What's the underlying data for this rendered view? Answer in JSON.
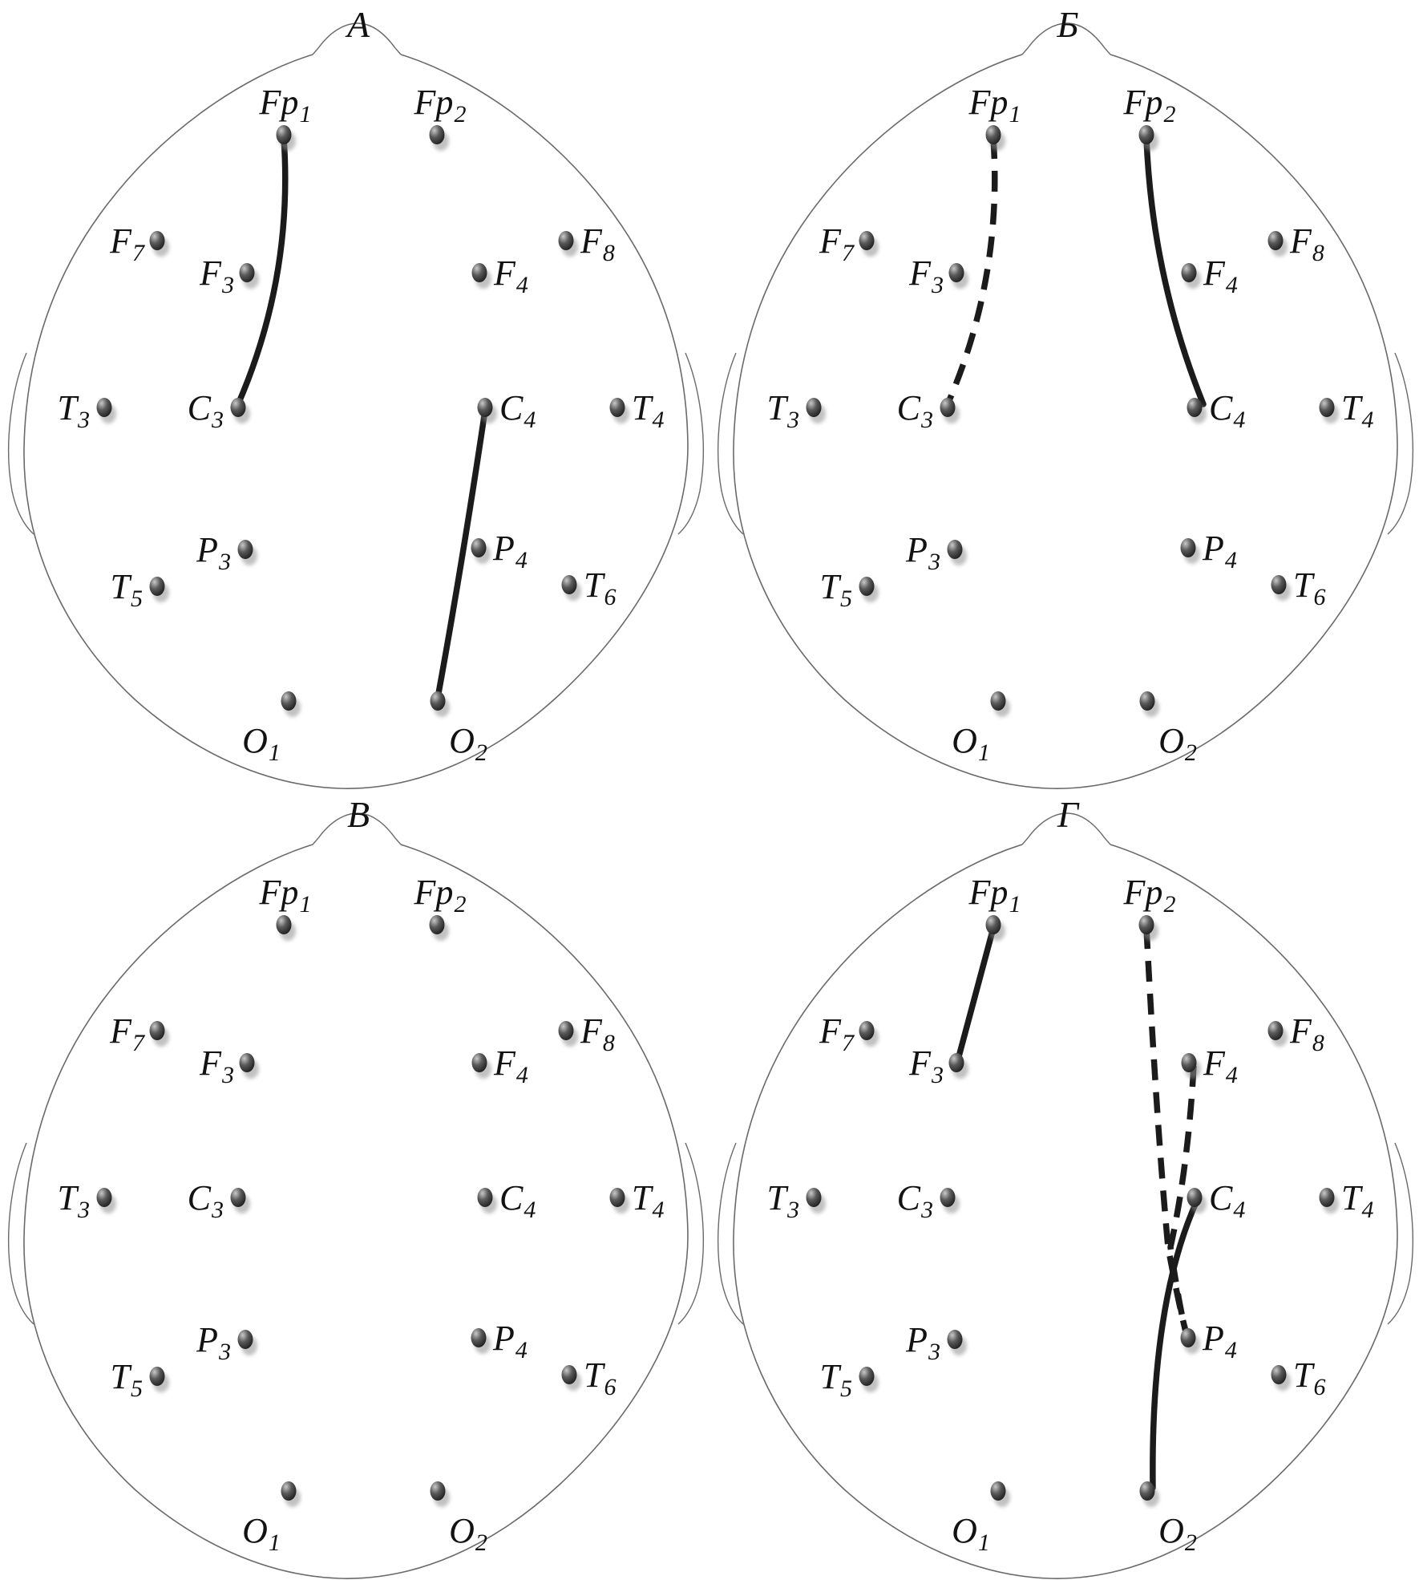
{
  "figure": {
    "type": "eeg-head-montage-diagram",
    "electrodes": [
      {
        "id": "Fp1",
        "main": "Fp",
        "sub": "1"
      },
      {
        "id": "Fp2",
        "main": "Fp",
        "sub": "2"
      },
      {
        "id": "F7",
        "main": "F",
        "sub": "7"
      },
      {
        "id": "F3",
        "main": "F",
        "sub": "3"
      },
      {
        "id": "F4",
        "main": "F",
        "sub": "4"
      },
      {
        "id": "F8",
        "main": "F",
        "sub": "8"
      },
      {
        "id": "T3",
        "main": "T",
        "sub": "3"
      },
      {
        "id": "C3",
        "main": "C",
        "sub": "3"
      },
      {
        "id": "C4",
        "main": "C",
        "sub": "4"
      },
      {
        "id": "T4",
        "main": "T",
        "sub": "4"
      },
      {
        "id": "P3",
        "main": "P",
        "sub": "3"
      },
      {
        "id": "P4",
        "main": "P",
        "sub": "4"
      },
      {
        "id": "T5",
        "main": "T",
        "sub": "5"
      },
      {
        "id": "T6",
        "main": "T",
        "sub": "6"
      },
      {
        "id": "O1",
        "main": "O",
        "sub": "1"
      },
      {
        "id": "O2",
        "main": "O",
        "sub": "2"
      }
    ],
    "panels": [
      {
        "title": "А",
        "connections": [
          {
            "from": "Fp1",
            "to": "C3",
            "style": "solid"
          },
          {
            "from": "C4",
            "to": "O2",
            "style": "solid"
          }
        ]
      },
      {
        "title": "Б",
        "connections": [
          {
            "from": "Fp1",
            "to": "C3",
            "style": "dashed"
          },
          {
            "from": "Fp2",
            "to": "C4",
            "style": "solid"
          }
        ]
      },
      {
        "title": "В",
        "connections": []
      },
      {
        "title": "Г",
        "connections": [
          {
            "from": "Fp1",
            "to": "F3",
            "style": "solid"
          },
          {
            "from": "Fp2",
            "to": "P4",
            "style": "dashed"
          },
          {
            "from": "F4",
            "to": "P4",
            "style": "dashed"
          },
          {
            "from": "C4",
            "to": "O2",
            "style": "solid"
          }
        ]
      }
    ],
    "colors": {
      "background": "#ffffff",
      "head_outline": "#6a6a6a",
      "connection_line": "#1b1b1b",
      "electrode_dark": "#1b1b1b",
      "electrode_light": "#c9c9c9"
    }
  }
}
